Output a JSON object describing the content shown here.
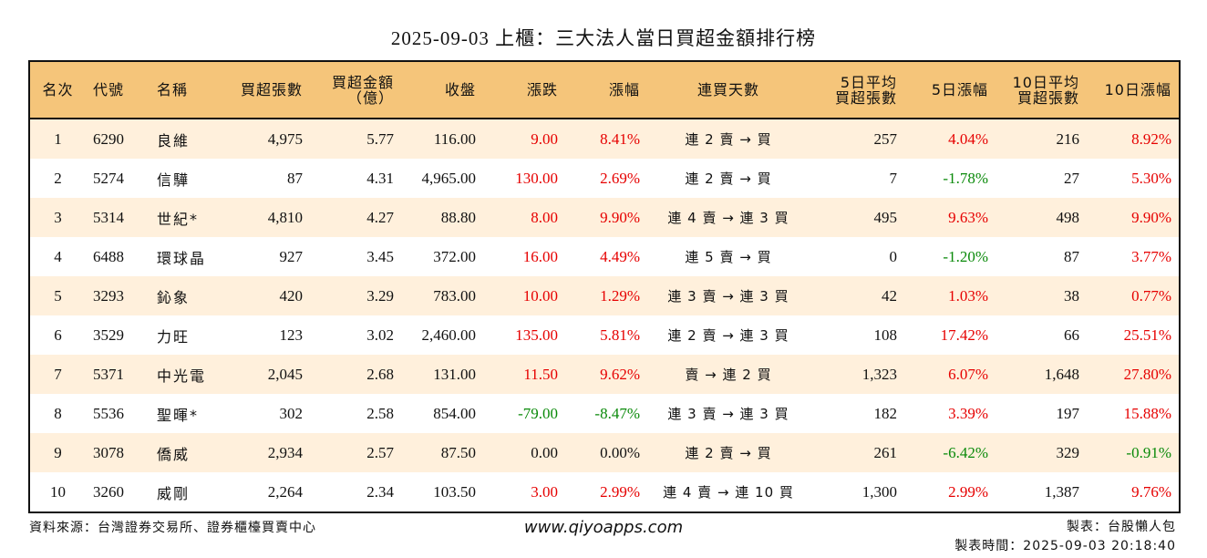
{
  "title": "2025-09-03 上櫃：三大法人當日買超金額排行榜",
  "headers": {
    "rank": "名次",
    "code": "代號",
    "name": "名稱",
    "buy_volume": "買超張數",
    "buy_amount_line1": "買超金額",
    "buy_amount_line2": "（億）",
    "close": "收盤",
    "change": "漲跌",
    "change_pct": "漲幅",
    "streak": "連買天數",
    "avg5_line1": "5日平均",
    "avg5_line2": "買超張數",
    "chg5": "5日漲幅",
    "avg10_line1": "10日平均",
    "avg10_line2": "買超張數",
    "chg10": "10日漲幅"
  },
  "colors": {
    "header_bg": "#f5c57a",
    "stripe_bg": "#fff0dc",
    "up": "#e60000",
    "down": "#0a8a0a"
  },
  "rows": [
    {
      "rank": "1",
      "code": "6290",
      "name": "良維",
      "buy_volume": "4,975",
      "buy_amount": "5.77",
      "close": "116.00",
      "change": "9.00",
      "change_color": "red",
      "change_pct": "8.41%",
      "change_pct_color": "red",
      "streak": "連 2 賣 → 買",
      "avg5": "257",
      "chg5": "4.04%",
      "chg5_color": "red",
      "avg10": "216",
      "chg10": "8.92%",
      "chg10_color": "red"
    },
    {
      "rank": "2",
      "code": "5274",
      "name": "信驊",
      "buy_volume": "87",
      "buy_amount": "4.31",
      "close": "4,965.00",
      "change": "130.00",
      "change_color": "red",
      "change_pct": "2.69%",
      "change_pct_color": "red",
      "streak": "連 2 賣 → 買",
      "avg5": "7",
      "chg5": "-1.78%",
      "chg5_color": "green",
      "avg10": "27",
      "chg10": "5.30%",
      "chg10_color": "red"
    },
    {
      "rank": "3",
      "code": "5314",
      "name": "世紀*",
      "buy_volume": "4,810",
      "buy_amount": "4.27",
      "close": "88.80",
      "change": "8.00",
      "change_color": "red",
      "change_pct": "9.90%",
      "change_pct_color": "red",
      "streak": "連 4 賣 → 連 3 買",
      "avg5": "495",
      "chg5": "9.63%",
      "chg5_color": "red",
      "avg10": "498",
      "chg10": "9.90%",
      "chg10_color": "red"
    },
    {
      "rank": "4",
      "code": "6488",
      "name": "環球晶",
      "buy_volume": "927",
      "buy_amount": "3.45",
      "close": "372.00",
      "change": "16.00",
      "change_color": "red",
      "change_pct": "4.49%",
      "change_pct_color": "red",
      "streak": "連 5 賣 → 買",
      "avg5": "0",
      "chg5": "-1.20%",
      "chg5_color": "green",
      "avg10": "87",
      "chg10": "3.77%",
      "chg10_color": "red"
    },
    {
      "rank": "5",
      "code": "3293",
      "name": "鈊象",
      "buy_volume": "420",
      "buy_amount": "3.29",
      "close": "783.00",
      "change": "10.00",
      "change_color": "red",
      "change_pct": "1.29%",
      "change_pct_color": "red",
      "streak": "連 3 賣 → 連 3 買",
      "avg5": "42",
      "chg5": "1.03%",
      "chg5_color": "red",
      "avg10": "38",
      "chg10": "0.77%",
      "chg10_color": "red"
    },
    {
      "rank": "6",
      "code": "3529",
      "name": "力旺",
      "buy_volume": "123",
      "buy_amount": "3.02",
      "close": "2,460.00",
      "change": "135.00",
      "change_color": "red",
      "change_pct": "5.81%",
      "change_pct_color": "red",
      "streak": "連 2 賣 → 連 3 買",
      "avg5": "108",
      "chg5": "17.42%",
      "chg5_color": "red",
      "avg10": "66",
      "chg10": "25.51%",
      "chg10_color": "red"
    },
    {
      "rank": "7",
      "code": "5371",
      "name": "中光電",
      "buy_volume": "2,045",
      "buy_amount": "2.68",
      "close": "131.00",
      "change": "11.50",
      "change_color": "red",
      "change_pct": "9.62%",
      "change_pct_color": "red",
      "streak": "賣 → 連 2 買",
      "avg5": "1,323",
      "chg5": "6.07%",
      "chg5_color": "red",
      "avg10": "1,648",
      "chg10": "27.80%",
      "chg10_color": "red"
    },
    {
      "rank": "8",
      "code": "5536",
      "name": "聖暉*",
      "buy_volume": "302",
      "buy_amount": "2.58",
      "close": "854.00",
      "change": "-79.00",
      "change_color": "green",
      "change_pct": "-8.47%",
      "change_pct_color": "green",
      "streak": "連 3 賣 → 連 3 買",
      "avg5": "182",
      "chg5": "3.39%",
      "chg5_color": "red",
      "avg10": "197",
      "chg10": "15.88%",
      "chg10_color": "red"
    },
    {
      "rank": "9",
      "code": "3078",
      "name": "僑威",
      "buy_volume": "2,934",
      "buy_amount": "2.57",
      "close": "87.50",
      "change": "0.00",
      "change_color": "black",
      "change_pct": "0.00%",
      "change_pct_color": "black",
      "streak": "連 2 賣 → 買",
      "avg5": "261",
      "chg5": "-6.42%",
      "chg5_color": "green",
      "avg10": "329",
      "chg10": "-0.91%",
      "chg10_color": "green"
    },
    {
      "rank": "10",
      "code": "3260",
      "name": "威剛",
      "buy_volume": "2,264",
      "buy_amount": "2.34",
      "close": "103.50",
      "change": "3.00",
      "change_color": "red",
      "change_pct": "2.99%",
      "change_pct_color": "red",
      "streak": "連 4 賣 → 連 10 買",
      "avg5": "1,300",
      "chg5": "2.99%",
      "chg5_color": "red",
      "avg10": "1,387",
      "chg10": "9.76%",
      "chg10_color": "red"
    }
  ],
  "footer": {
    "source": "資料來源：台灣證券交易所、證券櫃檯買賣中心",
    "website": "www.qiyoapps.com",
    "author": "製表：台股懶人包",
    "timestamp": "製表時間：2025-09-03 20:18:40"
  }
}
